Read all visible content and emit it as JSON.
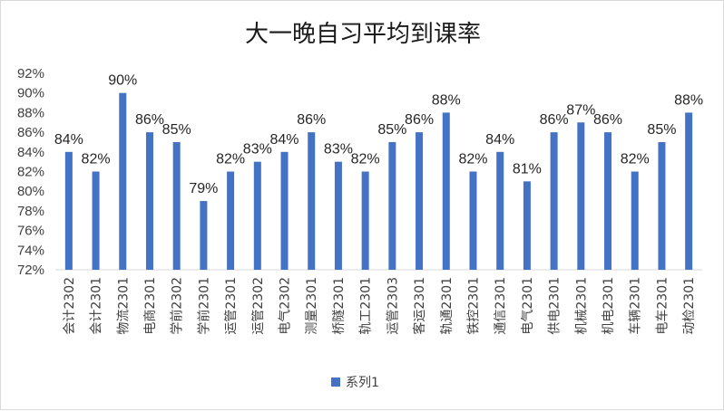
{
  "chart_data": {
    "type": "bar",
    "title": "大一晚自习平均到课率",
    "categories": [
      "会计2302",
      "会计2301",
      "物流2301",
      "电商2301",
      "学前2302",
      "学前2301",
      "运管2301",
      "运管2302",
      "电气2302",
      "测量2301",
      "桥隧2301",
      "轨工2301",
      "运管2303",
      "客运2301",
      "轨通2301",
      "铁控2301",
      "通信2301",
      "电气2301",
      "供电2301",
      "机械2301",
      "机电2301",
      "车辆2301",
      "电车2301",
      "动检2301"
    ],
    "series": [
      {
        "name": "系列1",
        "values": [
          0.84,
          0.82,
          0.9,
          0.86,
          0.85,
          0.79,
          0.82,
          0.83,
          0.84,
          0.86,
          0.83,
          0.82,
          0.85,
          0.86,
          0.88,
          0.82,
          0.84,
          0.81,
          0.86,
          0.87,
          0.86,
          0.82,
          0.85,
          0.88
        ],
        "labels": [
          "84%",
          "82%",
          "90%",
          "86%",
          "85%",
          "79%",
          "82%",
          "83%",
          "84%",
          "86%",
          "83%",
          "82%",
          "85%",
          "86%",
          "88%",
          "82%",
          "84%",
          "81%",
          "86%",
          "87%",
          "86%",
          "82%",
          "85%",
          "88%"
        ]
      }
    ],
    "ylim": [
      0.72,
      0.92
    ],
    "yticks": [
      0.72,
      0.74,
      0.76,
      0.78,
      0.8,
      0.82,
      0.84,
      0.86,
      0.88,
      0.9,
      0.92
    ],
    "ytick_labels": [
      "72%",
      "74%",
      "76%",
      "78%",
      "80%",
      "82%",
      "84%",
      "86%",
      "88%",
      "90%",
      "92%"
    ],
    "xlabel": "",
    "ylabel": "",
    "grid": false,
    "legend": "bottom",
    "colors": {
      "bar": "#4472C4",
      "axis": "#d9d9d9",
      "text": "#404040"
    }
  }
}
